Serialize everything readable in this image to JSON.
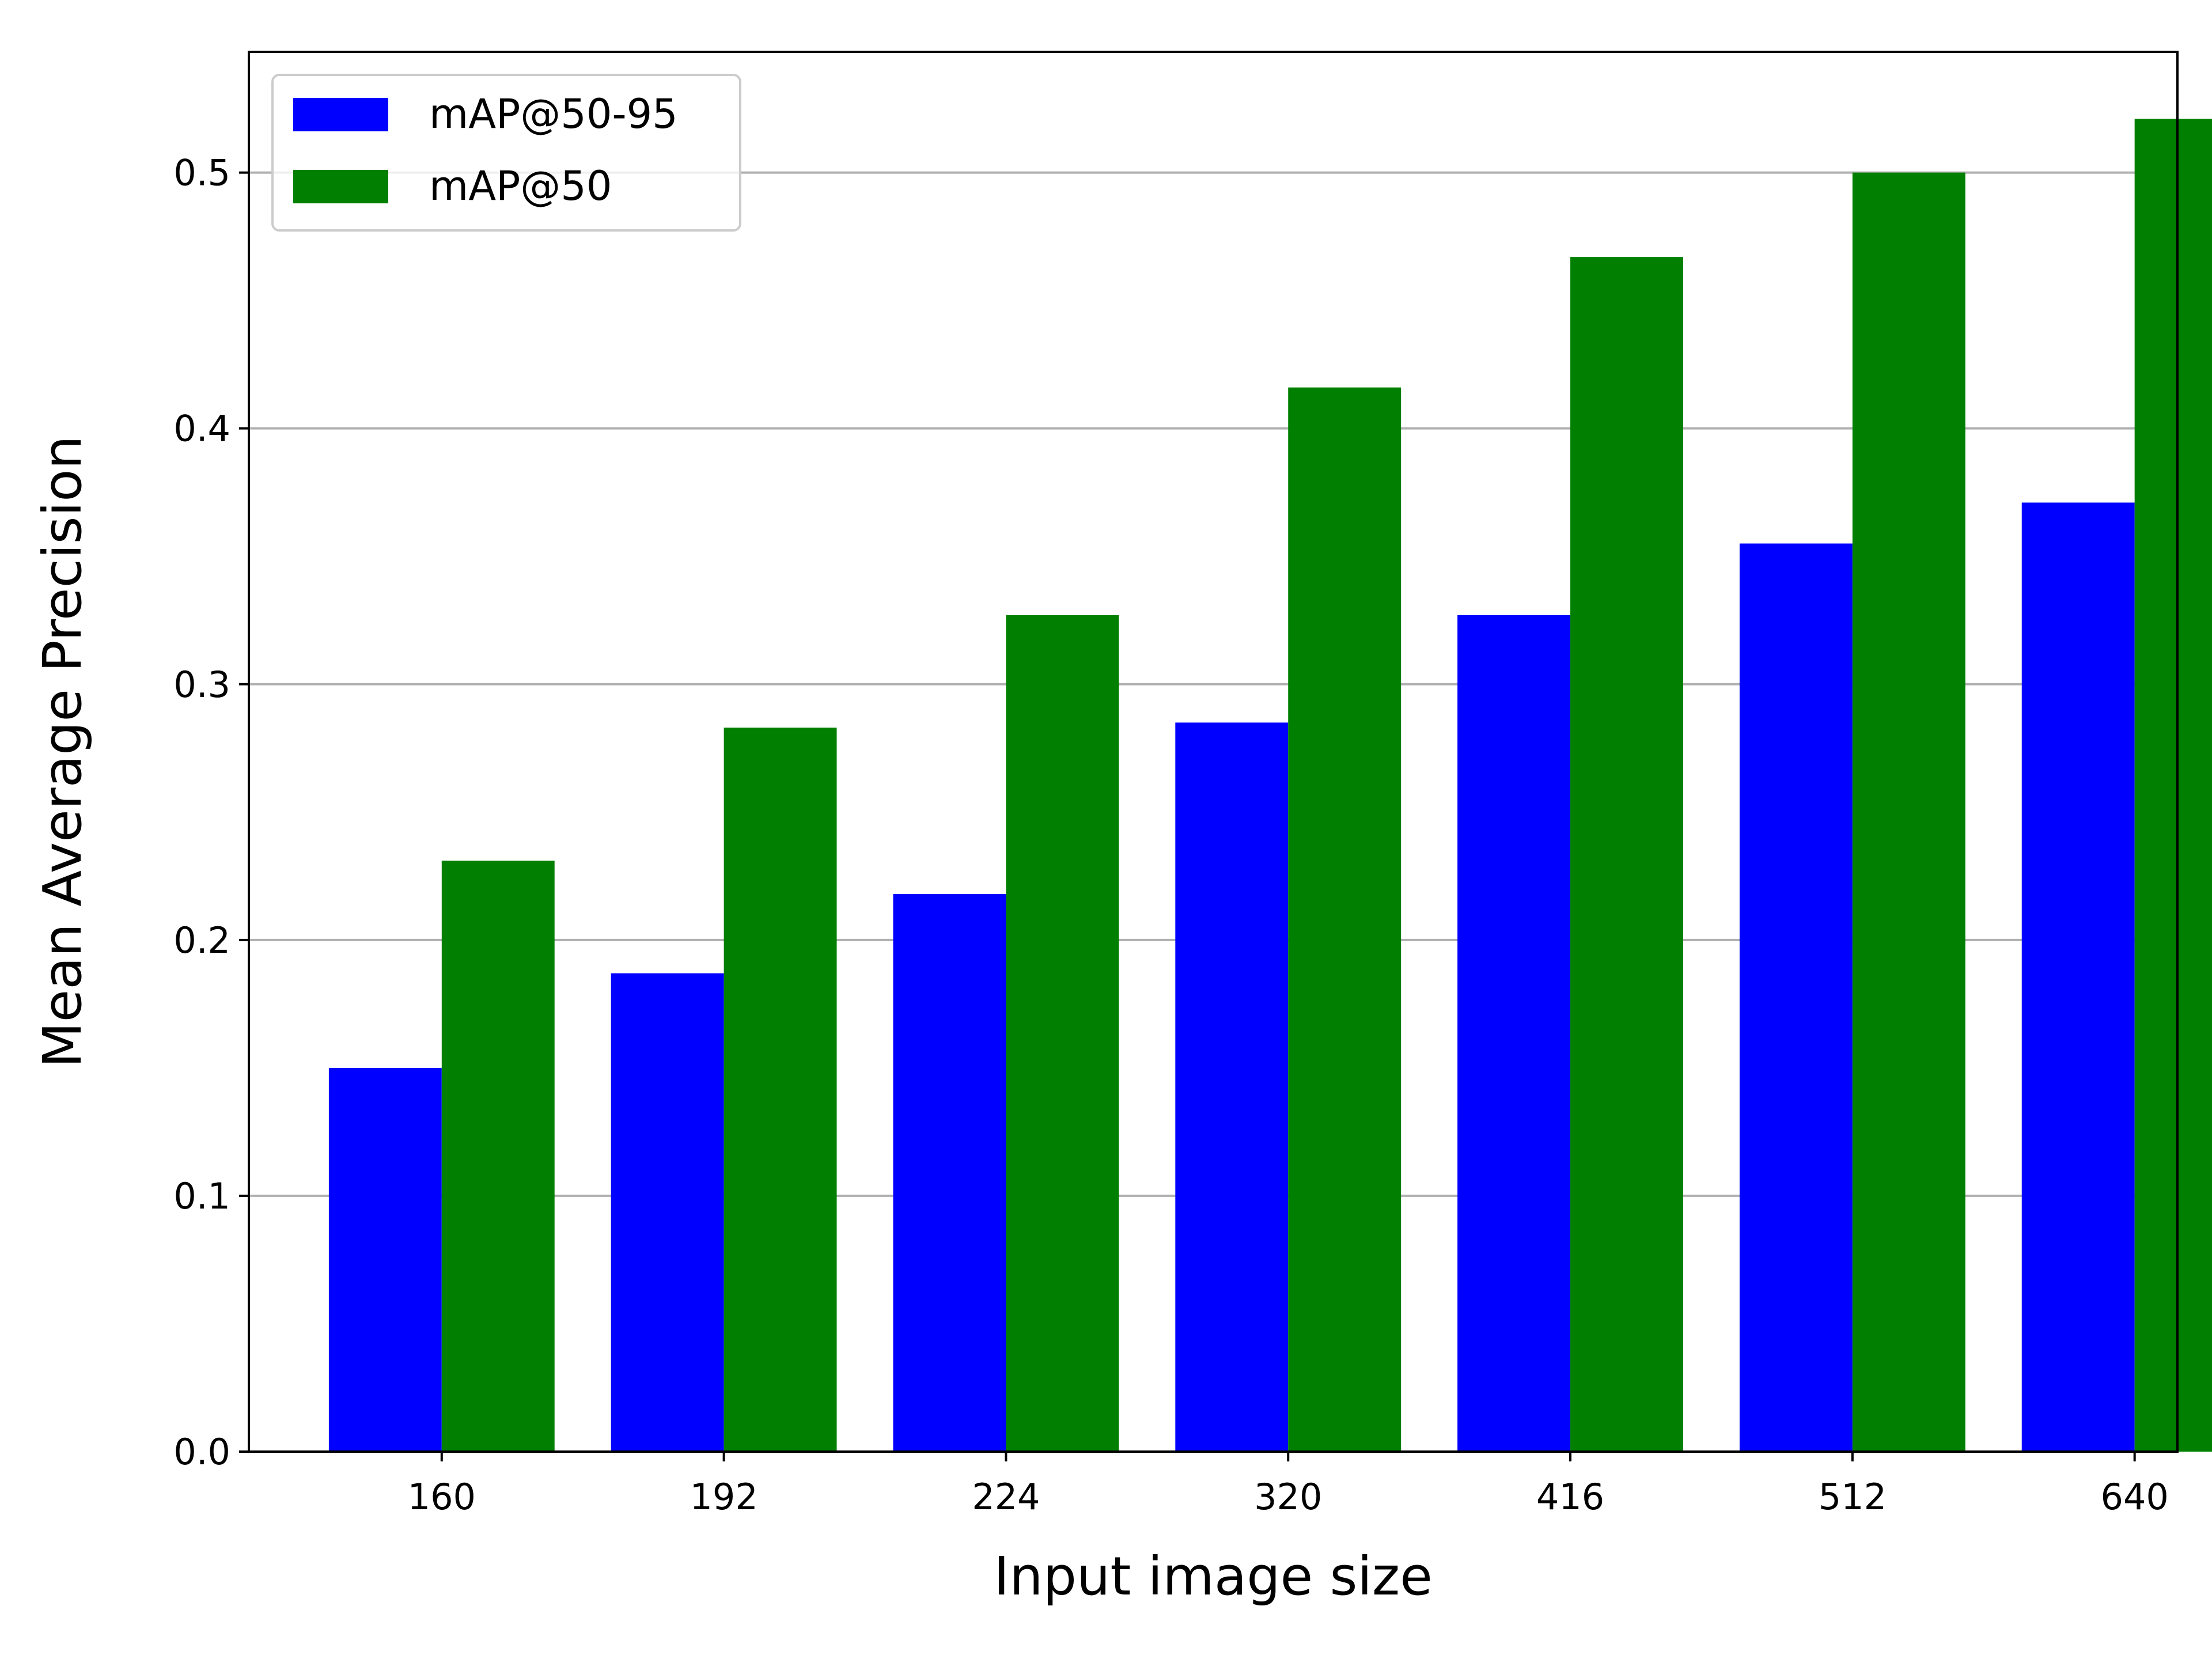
{
  "chart_data": {
    "type": "bar",
    "categories": [
      "160",
      "192",
      "224",
      "320",
      "416",
      "512",
      "640"
    ],
    "series": [
      {
        "name": "mAP@50-95",
        "color": "#0000ff",
        "values": [
          0.15,
          0.187,
          0.218,
          0.285,
          0.327,
          0.355,
          0.371
        ]
      },
      {
        "name": "mAP@50",
        "color": "#007f00",
        "values": [
          0.231,
          0.283,
          0.327,
          0.416,
          0.467,
          0.5,
          0.521
        ]
      }
    ],
    "title": "",
    "xlabel": "Input image size",
    "ylabel": "Mean Average Precision",
    "ylim": [
      0,
      0.5472
    ],
    "yticks": [
      0.0,
      0.1,
      0.2,
      0.3,
      0.4,
      0.5
    ],
    "ytick_labels": [
      "0.0",
      "0.1",
      "0.2",
      "0.3",
      "0.4",
      "0.5"
    ],
    "grid": "y",
    "legend_position": "top-left"
  }
}
